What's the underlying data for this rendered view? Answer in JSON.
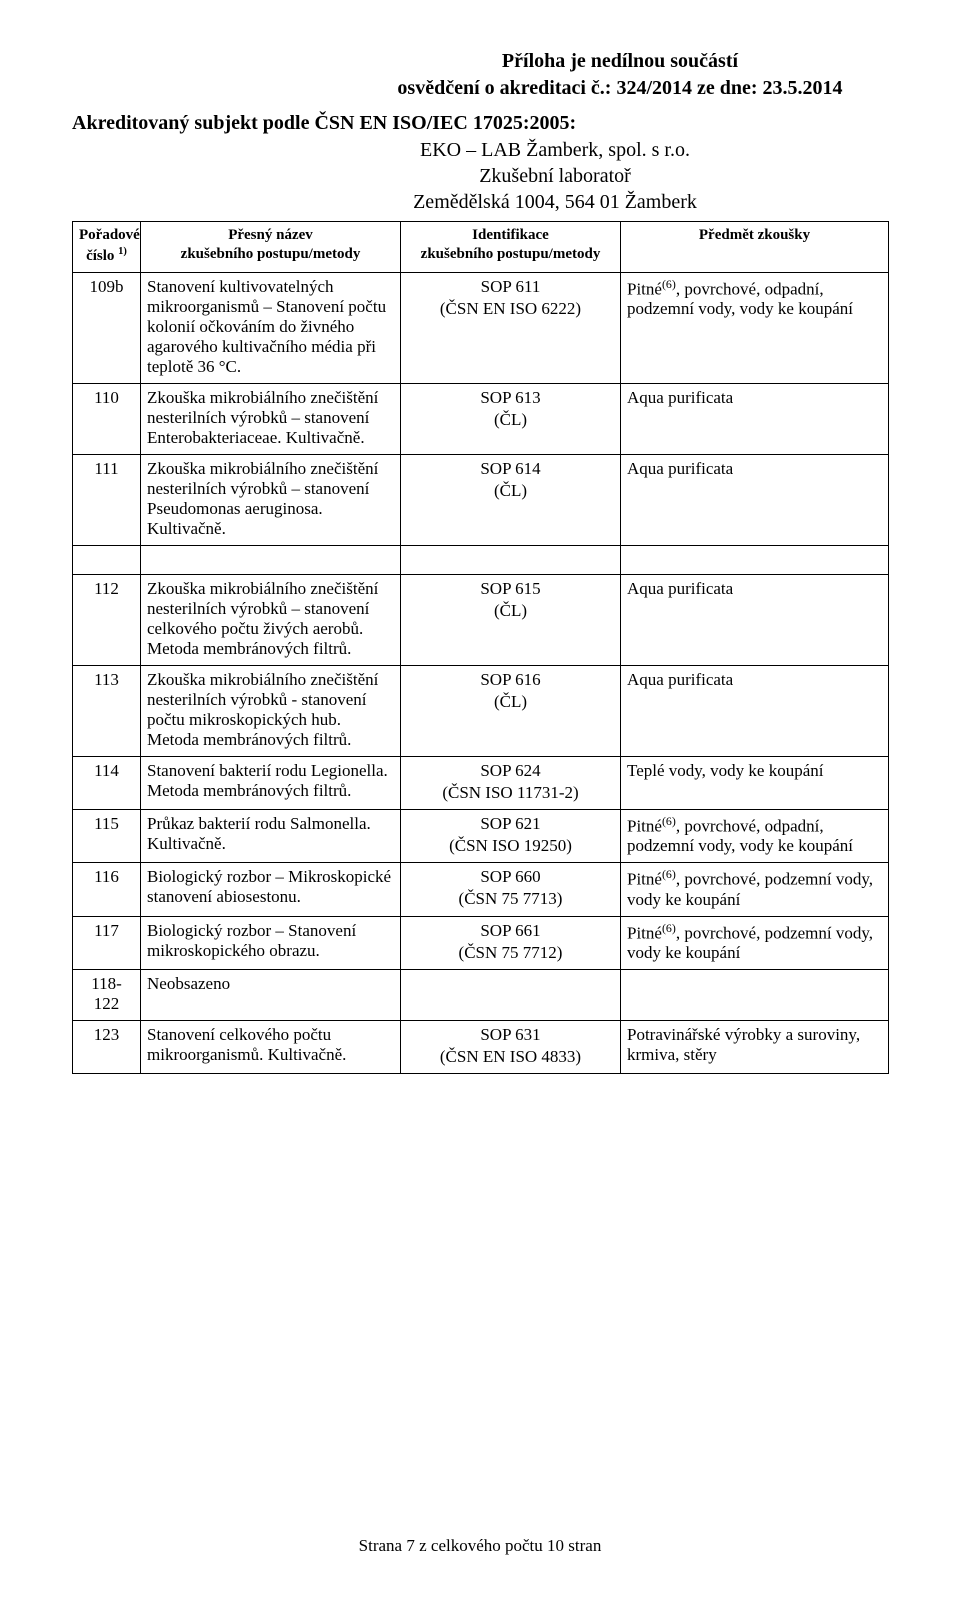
{
  "header": {
    "line1": "Příloha je nedílnou součástí",
    "line2": "osvědčení o akreditaci č.: 324/2014 ze dne: 23.5.2014"
  },
  "subject_line": "Akreditovaný subjekt podle ČSN EN ISO/IEC 17025:2005:",
  "lab": {
    "name": "EKO – LAB Žamberk, spol. s r.o.",
    "subtitle": "Zkušební laboratoř",
    "address": "Zemědělská 1004, 564 01 Žamberk"
  },
  "columns": {
    "c1_l1": "Pořadové",
    "c1_l2": "číslo",
    "c1_sup": "1)",
    "c2_l1": "Přesný název",
    "c2_l2": "zkušebního postupu/metody",
    "c3_l1": "Identifikace",
    "c3_l2": "zkušebního postupu/metody",
    "c4": "Předmět zkoušky"
  },
  "rows_top": [
    {
      "num": "109b",
      "name": "Stanovení kultivovatelných mikroorganismů – Stanovení počtu kolonií očkováním do živného agarového kultivačního média při teplotě 36 °C.",
      "sop": "SOP 611",
      "src": "(ČSN EN ISO 6222)",
      "subj_pre": "Pitné",
      "subj_sup": "(6)",
      "subj_post": ", povrchové, odpadní, podzemní vody, vody ke koupání"
    },
    {
      "num": "110",
      "name": "Zkouška mikrobiálního znečištění nesterilních výrobků – stanovení Enterobakteriaceae. Kultivačně.",
      "sop": "SOP 613",
      "src": "(ČL)",
      "subj_pre": "Aqua purificata",
      "subj_sup": "",
      "subj_post": ""
    },
    {
      "num": "111",
      "name": "Zkouška mikrobiálního znečištění nesterilních výrobků – stanovení Pseudomonas aeruginosa. Kultivačně.",
      "sop": "SOP 614",
      "src": "(ČL)",
      "subj_pre": "Aqua purificata",
      "subj_sup": "",
      "subj_post": ""
    }
  ],
  "rows_bottom": [
    {
      "num": "112",
      "name": "Zkouška mikrobiálního znečištění nesterilních výrobků – stanovení celkového počtu živých aerobů. Metoda membránových filtrů.",
      "sop": "SOP 615",
      "src": "(ČL)",
      "subj_pre": "Aqua purificata",
      "subj_sup": "",
      "subj_post": ""
    },
    {
      "num": "113",
      "name": "Zkouška mikrobiálního znečištění nesterilních výrobků - stanovení počtu mikroskopických hub. Metoda membránových filtrů.",
      "sop": "SOP 616",
      "src": "(ČL)",
      "subj_pre": "Aqua purificata",
      "subj_sup": "",
      "subj_post": ""
    },
    {
      "num": "114",
      "name": "Stanovení bakterií rodu Legionella. Metoda membránových filtrů.",
      "sop": "SOP 624",
      "src": "(ČSN ISO 11731-2)",
      "subj_pre": "Teplé vody, vody ke koupání",
      "subj_sup": "",
      "subj_post": ""
    },
    {
      "num": "115",
      "name": "Průkaz bakterií rodu Salmonella. Kultivačně.",
      "sop": "SOP 621",
      "src": "(ČSN ISO 19250)",
      "subj_pre": "Pitné",
      "subj_sup": "(6)",
      "subj_post": ", povrchové, odpadní, podzemní vody, vody ke koupání"
    },
    {
      "num": "116",
      "name": "Biologický rozbor – Mikroskopické stanovení abiosestonu.",
      "sop": "SOP 660",
      "src": "(ČSN 75 7713)",
      "subj_pre": "Pitné",
      "subj_sup": "(6)",
      "subj_post": ", povrchové, podzemní vody, vody ke koupání"
    },
    {
      "num": "117",
      "name": "Biologický rozbor – Stanovení mikroskopického obrazu.",
      "sop": "SOP 661",
      "src": "(ČSN 75 7712)",
      "subj_pre": "Pitné",
      "subj_sup": "(6)",
      "subj_post": ", povrchové, podzemní vody, vody ke koupání"
    },
    {
      "num": "118-122",
      "name": "Neobsazeno",
      "sop": "",
      "src": "",
      "subj_pre": "",
      "subj_sup": "",
      "subj_post": ""
    },
    {
      "num": "123",
      "name": "Stanovení celkového počtu mikroorganismů. Kultivačně.",
      "sop": "SOP 631",
      "src": "(ČSN EN ISO 4833)",
      "subj_pre": "Potravinářské výrobky a suroviny, krmiva, stěry",
      "subj_sup": "",
      "subj_post": ""
    }
  ],
  "footer": "Strana 7 z celkového počtu 10 stran"
}
